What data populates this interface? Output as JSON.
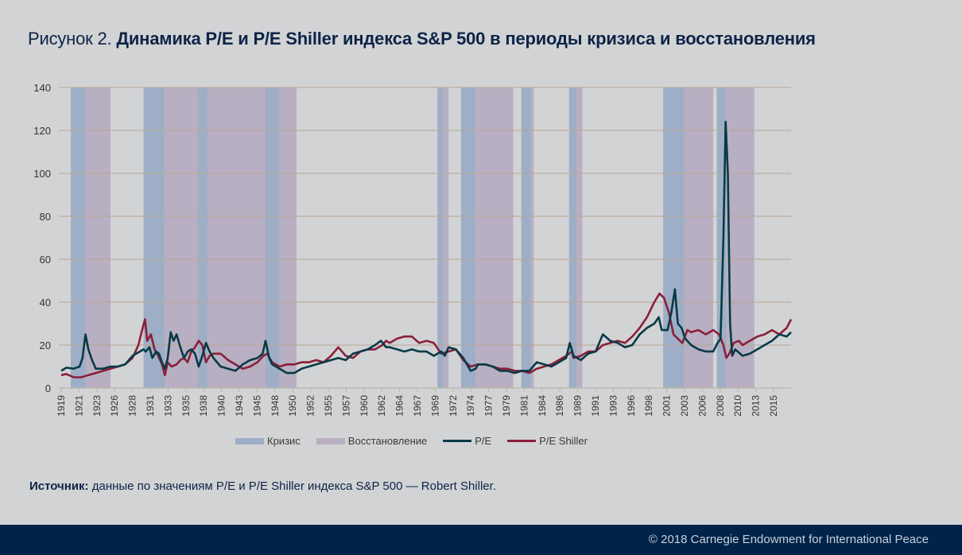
{
  "title": {
    "lead": "Рисунок 2.",
    "bold": "Динамика P/E  и P/E Shiller индекса S&P 500 в периоды кризиса и восстановления"
  },
  "legend": {
    "crisis": "Кризис",
    "recovery": "Восстановление",
    "pe": "P/E",
    "shiller": "P/E Shiller"
  },
  "source": {
    "label": "Источник:",
    "text": " данные по значениям P/E и P/E Shiller индекса S&P 500 — Robert Shiller."
  },
  "footer": {
    "copyright": "© 2018 Carnegie Endowment for International Peace"
  },
  "colors": {
    "background": "#d2d3d5",
    "crisis": "#9eaec6",
    "recovery": "#b9afc2",
    "pe": "#073a47",
    "shiller": "#8a1f3a",
    "grid": "#b8a896",
    "title": "#0d2447",
    "footer": "#00234a"
  },
  "chart_data": {
    "type": "line",
    "title": "Динамика P/E и P/E Shiller индекса S&P 500 в периоды кризиса и восстановления",
    "xlabel": "",
    "ylabel": "",
    "ylim": [
      0,
      140
    ],
    "xlim": [
      1918.3,
      2017.6
    ],
    "yticks": [
      0,
      20,
      40,
      60,
      80,
      100,
      120,
      140
    ],
    "xtick_labels": [
      "1919",
      "1921",
      "1923",
      "1926",
      "1928",
      "1931",
      "1933",
      "1935",
      "1938",
      "1940",
      "1943",
      "1945",
      "1948",
      "1950",
      "1952",
      "1955",
      "1957",
      "1960",
      "1962",
      "1964",
      "1967",
      "1969",
      "1972",
      "1974",
      "1977",
      "1979",
      "1981",
      "1984",
      "1986",
      "1989",
      "1991",
      "1993",
      "1996",
      "1998",
      "2001",
      "2003",
      "2006",
      "2008",
      "2010",
      "2013",
      "2015"
    ],
    "grid": true,
    "legend_position": "bottom",
    "bands": [
      {
        "type": "crisis",
        "start": 1919.6,
        "end": 1921.6
      },
      {
        "type": "recovery",
        "start": 1921.6,
        "end": 1925.0
      },
      {
        "type": "crisis",
        "start": 1929.5,
        "end": 1932.4
      },
      {
        "type": "recovery",
        "start": 1932.4,
        "end": 1936.9
      },
      {
        "type": "crisis",
        "start": 1936.9,
        "end": 1938.2
      },
      {
        "type": "recovery",
        "start": 1938.2,
        "end": 1946.1
      },
      {
        "type": "crisis",
        "start": 1946.1,
        "end": 1948.0
      },
      {
        "type": "recovery",
        "start": 1948.0,
        "end": 1950.3
      },
      {
        "type": "crisis",
        "start": 1969.5,
        "end": 1970.3
      },
      {
        "type": "recovery",
        "start": 1970.3,
        "end": 1971.0
      },
      {
        "type": "crisis",
        "start": 1972.7,
        "end": 1974.7
      },
      {
        "type": "recovery",
        "start": 1974.7,
        "end": 1979.8
      },
      {
        "type": "crisis",
        "start": 1980.9,
        "end": 1982.2
      },
      {
        "type": "recovery",
        "start": 1982.2,
        "end": 1982.6
      },
      {
        "type": "crisis",
        "start": 1987.4,
        "end": 1988.4
      },
      {
        "type": "recovery",
        "start": 1988.4,
        "end": 1989.2
      },
      {
        "type": "crisis",
        "start": 2000.2,
        "end": 2003.1
      },
      {
        "type": "recovery",
        "start": 2003.1,
        "end": 2007.0
      },
      {
        "type": "crisis",
        "start": 2007.5,
        "end": 2008.8
      },
      {
        "type": "recovery",
        "start": 2008.8,
        "end": 2012.6
      }
    ],
    "series": [
      {
        "name": "P/E",
        "x": [
          1918.3,
          1919,
          1920,
          1920.8,
          1921.2,
          1921.6,
          1922,
          1922.5,
          1923,
          1924,
          1925,
          1926,
          1927,
          1928,
          1929,
          1929.5,
          1929.8,
          1930.3,
          1930.7,
          1931.2,
          1931.6,
          1932,
          1932.4,
          1932.8,
          1933.2,
          1933.6,
          1934,
          1934.5,
          1935,
          1935.5,
          1936,
          1936.5,
          1937,
          1937.5,
          1938,
          1938.5,
          1939,
          1939.5,
          1940,
          1941,
          1942,
          1943,
          1944,
          1945,
          1945.7,
          1946.1,
          1946.6,
          1947,
          1948,
          1949,
          1950,
          1951,
          1952,
          1953,
          1954,
          1955,
          1956,
          1957,
          1958,
          1959,
          1960,
          1961,
          1961.8,
          1962.5,
          1963,
          1964,
          1965,
          1966,
          1967,
          1968,
          1969,
          1970,
          1970.5,
          1971,
          1972,
          1973,
          1974,
          1974.7,
          1975,
          1976,
          1977,
          1978,
          1979,
          1980,
          1981,
          1982,
          1982.5,
          1983,
          1984,
          1985,
          1986,
          1987,
          1987.5,
          1988,
          1989,
          1990,
          1991,
          1992,
          1993,
          1994,
          1995,
          1996,
          1997,
          1998,
          1999,
          1999.6,
          2000,
          2000.8,
          2001.3,
          2001.8,
          2002.2,
          2002.7,
          2003.2,
          2004,
          2005,
          2006,
          2007,
          2007.6,
          2008,
          2008.4,
          2008.7,
          2009,
          2009.3,
          2009.6,
          2010,
          2011,
          2012,
          2013,
          2014,
          2015,
          2016,
          2017,
          2017.6
        ],
        "y": [
          8,
          9.5,
          9,
          10,
          14,
          25,
          18,
          13,
          9,
          9,
          10,
          10,
          11,
          15,
          17,
          18,
          17,
          19,
          14,
          17,
          16,
          12,
          9,
          14,
          26,
          22,
          25,
          19,
          14,
          17,
          18,
          16,
          10,
          15,
          21,
          17,
          14,
          12,
          10,
          9,
          8,
          11,
          13,
          14,
          16,
          22,
          14,
          11,
          9,
          7,
          7,
          9,
          10,
          11,
          12,
          13,
          14,
          13,
          16,
          17,
          18,
          20,
          22,
          19,
          19,
          18,
          17,
          18,
          17,
          17,
          15,
          17,
          15,
          19,
          18,
          14,
          8,
          9,
          11,
          11,
          10,
          8,
          8,
          7,
          8,
          8,
          10,
          12,
          11,
          10,
          12,
          14,
          21,
          15,
          13,
          16,
          17,
          25,
          22,
          21,
          19,
          20,
          25,
          28,
          30,
          33,
          27,
          27,
          35,
          46,
          30,
          28,
          23,
          20,
          18,
          17,
          17,
          21,
          23,
          70,
          124,
          100,
          30,
          15,
          18,
          15,
          16,
          18,
          20,
          22,
          25,
          24,
          26
        ]
      },
      {
        "name": "P/E Shiller",
        "x": [
          1918.3,
          1919,
          1920,
          1921,
          1922,
          1923,
          1924,
          1925,
          1926,
          1927,
          1928,
          1928.8,
          1929.3,
          1929.7,
          1930,
          1930.5,
          1931,
          1931.5,
          1932,
          1932.4,
          1932.8,
          1933.3,
          1934,
          1934.5,
          1935,
          1935.5,
          1936,
          1936.5,
          1937,
          1937.5,
          1938,
          1938.5,
          1939,
          1940,
          1941,
          1942,
          1943,
          1944,
          1945,
          1945.8,
          1946.3,
          1947,
          1948,
          1949,
          1950,
          1951,
          1952,
          1953,
          1954,
          1955,
          1956,
          1957,
          1958,
          1959,
          1960,
          1961,
          1962,
          1962.5,
          1963,
          1964,
          1965,
          1966,
          1967,
          1968,
          1969,
          1970,
          1971,
          1972,
          1973,
          1974,
          1975,
          1976,
          1977,
          1978,
          1979,
          1980,
          1981,
          1982,
          1983,
          1984,
          1985,
          1986,
          1987,
          1987.8,
          1988,
          1989,
          1990,
          1991,
          1992,
          1993,
          1994,
          1995,
          1996,
          1997,
          1998,
          1999,
          1999.7,
          2000.3,
          2001,
          2001.6,
          2002.2,
          2002.8,
          2003.5,
          2004,
          2005,
          2006,
          2007,
          2007.8,
          2008.4,
          2008.8,
          2009.2,
          2009.8,
          2010.5,
          2011,
          2012,
          2013,
          2014,
          2015,
          2016,
          2017,
          2017.6
        ],
        "y": [
          6,
          6.5,
          5,
          5,
          6,
          7,
          8,
          9,
          10,
          11,
          14,
          20,
          27,
          32,
          22,
          25,
          18,
          15,
          11,
          6,
          12,
          10,
          11,
          13,
          14,
          12,
          17,
          19,
          22,
          20,
          12,
          15,
          16,
          16,
          13,
          11,
          9,
          10,
          12,
          15,
          16,
          12,
          10,
          11,
          11,
          12,
          12,
          13,
          12,
          15,
          19,
          15,
          14,
          17,
          18,
          18,
          20,
          22,
          21,
          23,
          24,
          24,
          21,
          22,
          21,
          16,
          17,
          18,
          13,
          10,
          11,
          11,
          10,
          9,
          9,
          8,
          8,
          7,
          9,
          10,
          11,
          13,
          15,
          17,
          14,
          15,
          17,
          17,
          20,
          21,
          22,
          21,
          24,
          28,
          33,
          40,
          44,
          42,
          35,
          25,
          23,
          21,
          27,
          26,
          27,
          25,
          27,
          25,
          20,
          14,
          16,
          21,
          22,
          20,
          22,
          24,
          25,
          27,
          25,
          28,
          32
        ]
      }
    ]
  }
}
